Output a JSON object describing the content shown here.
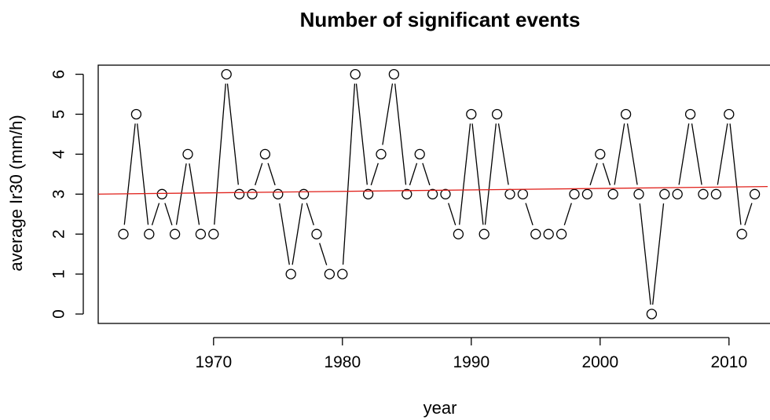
{
  "chart_data": {
    "type": "line",
    "title": "Number of significant events",
    "xlabel": "year",
    "ylabel": "average Ir30 (mm/h)",
    "xlim": [
      1961,
      2013
    ],
    "ylim": [
      0,
      6
    ],
    "x_ticks": [
      1970,
      1980,
      1990,
      2000,
      2010
    ],
    "y_ticks": [
      0,
      1,
      2,
      3,
      4,
      5,
      6
    ],
    "grid": false,
    "legend": "none",
    "series": [
      {
        "style": "points-and-lines",
        "color": "#000000",
        "marker": "open-circle",
        "x": [
          1963,
          1964,
          1965,
          1966,
          1967,
          1968,
          1969,
          1970,
          1971,
          1972,
          1973,
          1974,
          1975,
          1976,
          1977,
          1978,
          1979,
          1980,
          1981,
          1982,
          1983,
          1984,
          1985,
          1986,
          1987,
          1988,
          1989,
          1990,
          1991,
          1992,
          1993,
          1994,
          1995,
          1996,
          1997,
          1998,
          1999,
          2000,
          2001,
          2002,
          2003,
          2004,
          2005,
          2006,
          2007,
          2008,
          2009,
          2010,
          2011,
          2012
        ],
        "y": [
          2,
          5,
          2,
          3,
          2,
          4,
          2,
          2,
          6,
          3,
          3,
          4,
          3,
          1,
          3,
          2,
          1,
          1,
          6,
          3,
          4,
          6,
          3,
          4,
          3,
          3,
          2,
          5,
          2,
          5,
          3,
          3,
          2,
          2,
          2,
          3,
          3,
          4,
          3,
          5,
          3,
          0,
          3,
          3,
          5,
          3,
          3,
          5,
          2,
          3
        ]
      }
    ],
    "trend_line": {
      "color": "#e0201a",
      "x": [
        1961,
        2013
      ],
      "y": [
        3.0,
        3.19
      ]
    }
  }
}
